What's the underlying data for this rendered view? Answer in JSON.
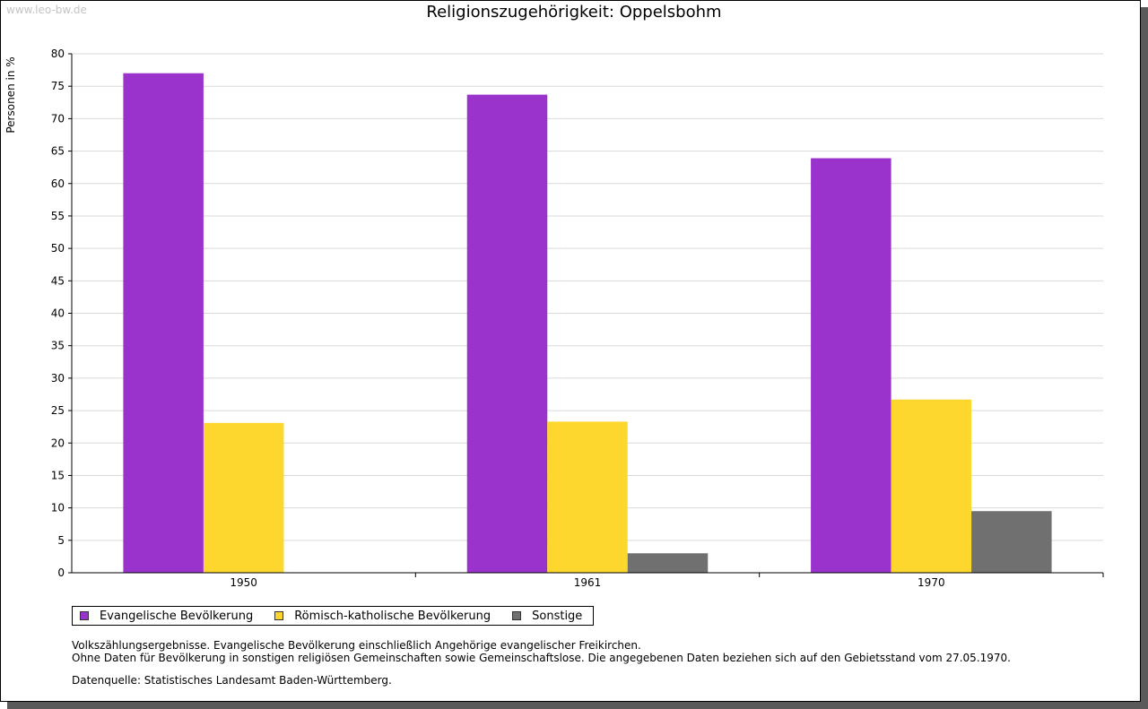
{
  "watermark": "www.leo-bw.de",
  "chart_data": {
    "type": "bar",
    "title": "Religionszugehörigkeit: Oppelsbohm",
    "xlabel": "",
    "ylabel": "Personen in %",
    "categories": [
      "1950",
      "1961",
      "1970"
    ],
    "series": [
      {
        "name": "Evangelische Bevölkerung",
        "color": "#9933cc",
        "values": [
          77.0,
          73.7,
          63.9
        ]
      },
      {
        "name": "Römisch-katholische Bevölkerung",
        "color": "#fdd72e",
        "values": [
          23.1,
          23.3,
          26.7
        ]
      },
      {
        "name": "Sonstige",
        "color": "#707070",
        "values": [
          null,
          3.0,
          9.5
        ]
      }
    ],
    "ylim": [
      0,
      80
    ],
    "yticks": [
      0,
      5,
      10,
      15,
      20,
      25,
      30,
      35,
      40,
      45,
      50,
      55,
      60,
      65,
      70,
      75,
      80
    ],
    "grid": true,
    "legend": "bottom-left"
  },
  "notes": [
    "Volkszählungsergebnisse. Evangelische Bevölkerung einschließlich Angehörige evangelischer Freikirchen.",
    "Ohne Daten für Bevölkerung in sonstigen religiösen Gemeinschaften sowie Gemeinschaftslose. Die angegebenen Daten beziehen sich auf den Gebietsstand vom 27.05.1970."
  ],
  "source": "Datenquelle: Statistisches Landesamt Baden-Württemberg."
}
